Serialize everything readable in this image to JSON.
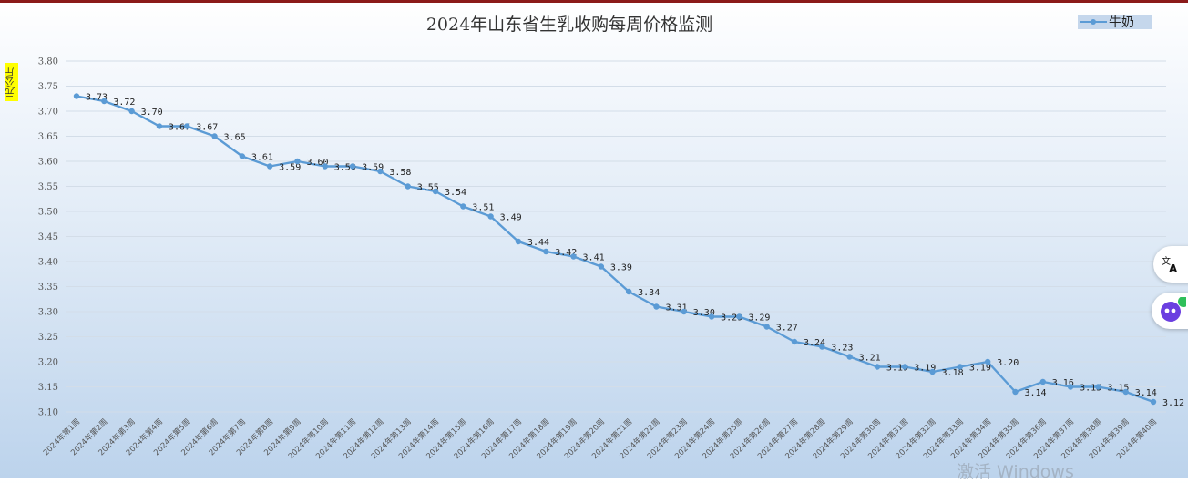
{
  "chart_data": {
    "type": "line",
    "title": "2024年山东省生乳收购每周价格监测",
    "ylabel": "元/公斤",
    "xlabel": "",
    "ylim": [
      3.1,
      3.8
    ],
    "yticks": [
      "3.10",
      "3.15",
      "3.20",
      "3.25",
      "3.30",
      "3.35",
      "3.40",
      "3.45",
      "3.50",
      "3.55",
      "3.60",
      "3.65",
      "3.70",
      "3.75",
      "3.80"
    ],
    "grid": true,
    "legend_position": "top-right",
    "series_color": "#5b9bd5",
    "categories": [
      "2024年第1周",
      "2024年第2周",
      "2024年第3周",
      "2024年第4周",
      "2024年第5周",
      "2024年第6周",
      "2024年第7周",
      "2024年第8周",
      "2024年第9周",
      "2024年第10周",
      "2024年第11周",
      "2024年第12周",
      "2024年第13周",
      "2024年第14周",
      "2024年第15周",
      "2024年第16周",
      "2024年第17周",
      "2024年第18周",
      "2024年第19周",
      "2024年第20周",
      "2024年第21周",
      "2024年第22周",
      "2024年第23周",
      "2024年第24周",
      "2024年第25周",
      "2024年第26周",
      "2024年第27周",
      "2024年第28周",
      "2024年第29周",
      "2024年第30周",
      "2024年第31周",
      "2024年第32周",
      "2024年第33周",
      "2024年第34周",
      "2024年第35周",
      "2024年第36周",
      "2024年第37周",
      "2024年第38周",
      "2024年第39周",
      "2024年第40周"
    ],
    "series": [
      {
        "name": "牛奶",
        "values": [
          3.73,
          3.72,
          3.7,
          3.67,
          3.67,
          3.65,
          3.61,
          3.59,
          3.6,
          3.59,
          3.59,
          3.58,
          3.55,
          3.54,
          3.51,
          3.49,
          3.44,
          3.42,
          3.41,
          3.39,
          3.34,
          3.31,
          3.3,
          3.29,
          3.29,
          3.27,
          3.24,
          3.23,
          3.21,
          3.19,
          3.19,
          3.18,
          3.19,
          3.2,
          3.14,
          3.16,
          3.15,
          3.15,
          3.14,
          3.12
        ],
        "labels": [
          "3.73",
          "3.72",
          "3.70",
          "3.67",
          "3.67",
          "3.65",
          "3.61",
          "3.59",
          "3.60",
          "3.59",
          "3.59",
          "3.58",
          "3.55",
          "3.54",
          "3.51",
          "3.49",
          "3.44",
          "3.42",
          "3.41",
          "3.39",
          "3.34",
          "3.31",
          "3.30",
          "3.29",
          "3.29",
          "3.27",
          "3.24",
          "3.23",
          "3.21",
          "3.19",
          "3.19",
          "3.18",
          "3.19",
          "3.20",
          "3.14",
          "3.16",
          "3.15",
          "3.15",
          "3.14",
          "3.12"
        ]
      }
    ]
  },
  "overlay": {
    "watermark": "激活 Windows",
    "translate_icon": "translate-icon",
    "assistant_icon": "assistant-icon"
  }
}
